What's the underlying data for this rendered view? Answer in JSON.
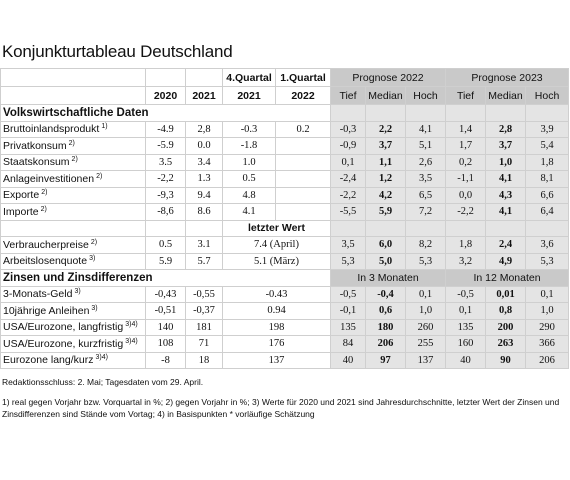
{
  "title": "Konjunkturtableau Deutschland",
  "table": {
    "header": {
      "quarter_2021": "4.Quartal",
      "quarter_2022": "1.Quartal",
      "prognose_2022": "Prognose 2022",
      "prognose_2023": "Prognose 2023",
      "years": [
        "2020",
        "2021",
        "2021",
        "2022"
      ],
      "sub": [
        "Tief",
        "Median",
        "Hoch",
        "Tief",
        "Median",
        "Hoch"
      ]
    },
    "sections": [
      {
        "title": "Volkswirtschaftliche Daten",
        "rows": [
          {
            "label": "Bruttoinlandsprodukt",
            "note": "1)",
            "values": [
              "-4.9",
              "2,8",
              "-0.3",
              "0.2",
              "-0,3",
              "2,2",
              "4,1",
              "1,4",
              "2,8",
              "3,9"
            ]
          },
          {
            "label": "Privatkonsum",
            "note": "2)",
            "values": [
              "-5.9",
              "0.0",
              "-1.8",
              null,
              "-0,9",
              "3,7",
              "5,1",
              "1,7",
              "3,7",
              "5,4"
            ]
          },
          {
            "label": "Staatskonsum",
            "note": "2)",
            "values": [
              "3.5",
              "3.4",
              "1.0",
              null,
              "0,1",
              "1,1",
              "2,6",
              "0,2",
              "1,0",
              "1,8"
            ]
          },
          {
            "label": "Anlageinvestitionen",
            "note": "2)",
            "values": [
              "-2,2",
              "1.3",
              "0.5",
              null,
              "-2,4",
              "1,2",
              "3,5",
              "-1,1",
              "4,1",
              "8,1"
            ]
          },
          {
            "label": "Exporte",
            "note": "2)",
            "values": [
              "-9,3",
              "9.4",
              "4.8",
              null,
              "-2,2",
              "4,2",
              "6,5",
              "0,0",
              "4,3",
              "6,6"
            ]
          },
          {
            "label": "Importe",
            "note": "2)",
            "values": [
              "-8,6",
              "8.6",
              "4.1",
              null,
              "-5,5",
              "5,9",
              "7,2",
              "-2,2",
              "4,1",
              "6,4"
            ]
          }
        ]
      },
      {
        "subheading": "letzter Wert",
        "rows": [
          {
            "label": "Verbraucherpreise",
            "note": "2)",
            "values": [
              "0.5",
              "3.1",
              "7.4 (April)",
              "3,5",
              "6,0",
              "8,2",
              "1,8",
              "2,4",
              "3,6"
            ]
          },
          {
            "label": "Arbeitslosenquote",
            "note": "3)",
            "values": [
              "5.9",
              "5.7",
              "5.1 (März)",
              "5,3",
              "5,0",
              "5,3",
              "3,2",
              "4,9",
              "5,3"
            ]
          }
        ]
      },
      {
        "title": "Zinsen und Zinsdifferenzen",
        "horizons": [
          "In 3 Monaten",
          "In 12 Monaten"
        ],
        "rows": [
          {
            "label": "3-Monats-Geld",
            "note": "3)",
            "values": [
              "-0,43",
              "-0,55",
              "-0.43",
              "-0,5",
              "-0,4",
              "0,1",
              "-0,5",
              "0,01",
              "0,1"
            ]
          },
          {
            "label": "10jährige Anleihen",
            "note": "3)",
            "values": [
              "-0,51",
              "-0,37",
              "0.94",
              "-0,1",
              "0,6",
              "1,0",
              "0,1",
              "0,8",
              "1,0"
            ]
          },
          {
            "label": "USA/Eurozone, langfristig",
            "note": "3)4)",
            "values": [
              "140",
              "181",
              "198",
              "135",
              "180",
              "260",
              "135",
              "200",
              "290"
            ]
          },
          {
            "label": "USA/Eurozone, kurzfristig",
            "note": "3)4)",
            "values": [
              "108",
              "71",
              "176",
              "84",
              "206",
              "255",
              "160",
              "263",
              "366"
            ]
          },
          {
            "label": "Eurozone lang/kurz",
            "note": "3)4)",
            "values": [
              "-8",
              "18",
              "137",
              "40",
              "97",
              "137",
              "40",
              "90",
              "206"
            ]
          }
        ]
      }
    ]
  },
  "footer": {
    "deadline": "Redaktionsschluss: 2. Mai; Tagesdaten vom 29. April.",
    "notes": "1) real gegen Vorjahr bzw. Vorquartal in %; 2) gegen Vorjahr in %; 3) Werte für 2020 und 2021 sind Jahresdurchschnitte, letzter Wert der Zinsen und Zinsdifferenzen sind Stände vom Vortag; 4) in Basispunkten * vorläufige Schätzung"
  }
}
